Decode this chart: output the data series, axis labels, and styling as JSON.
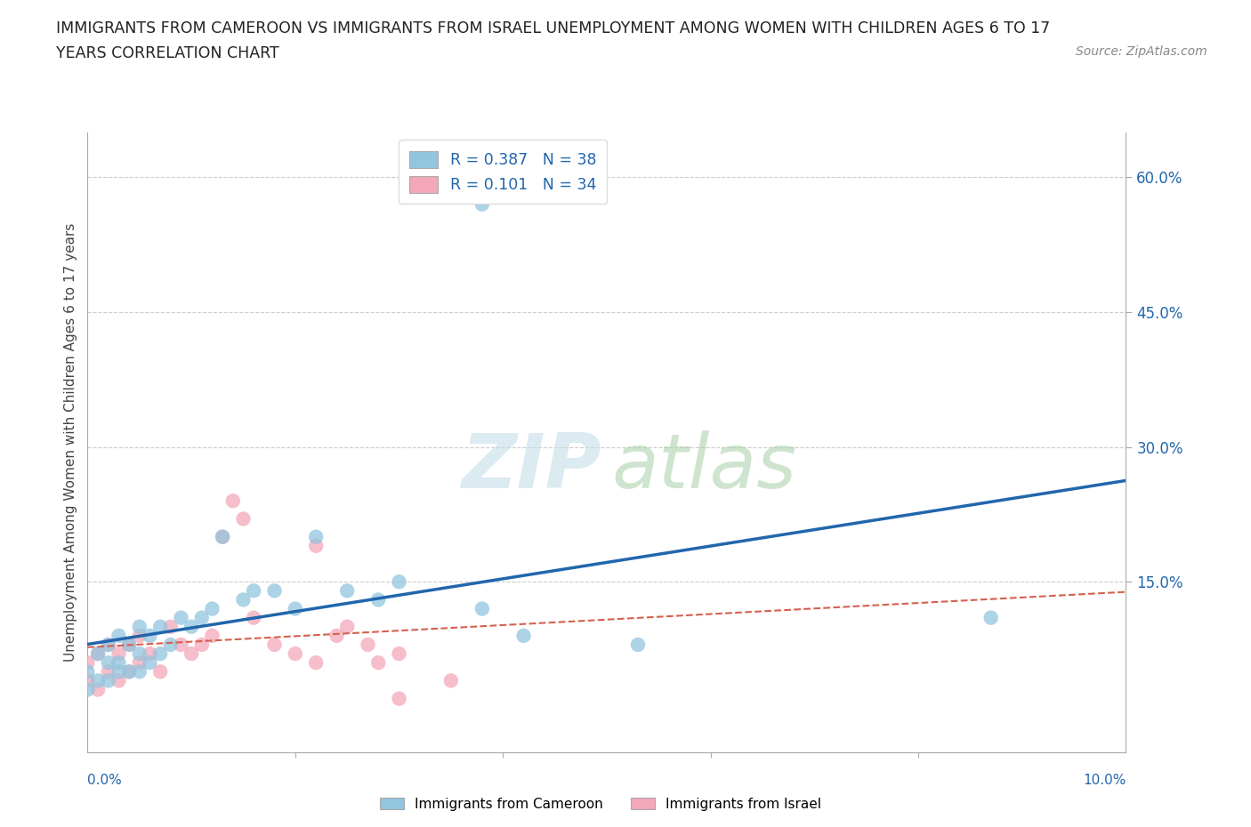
{
  "title_line1": "IMMIGRANTS FROM CAMEROON VS IMMIGRANTS FROM ISRAEL UNEMPLOYMENT AMONG WOMEN WITH CHILDREN AGES 6 TO 17",
  "title_line2": "YEARS CORRELATION CHART",
  "source": "Source: ZipAtlas.com",
  "ylabel": "Unemployment Among Women with Children Ages 6 to 17 years",
  "legend_cameroon": "Immigrants from Cameroon",
  "legend_israel": "Immigrants from Israel",
  "R_cameroon": 0.387,
  "N_cameroon": 38,
  "R_israel": 0.101,
  "N_israel": 34,
  "cameroon_color": "#92c5de",
  "israel_color": "#f4a7b9",
  "cameroon_line_color": "#2166ac",
  "israel_line_color": "#d6604d",
  "background_color": "#ffffff",
  "grid_color": "#cccccc",
  "xlim": [
    0.0,
    0.1
  ],
  "ylim": [
    -0.04,
    0.65
  ],
  "cameroon_x": [
    0.0,
    0.0,
    0.001,
    0.001,
    0.002,
    0.002,
    0.002,
    0.003,
    0.003,
    0.003,
    0.004,
    0.004,
    0.005,
    0.005,
    0.005,
    0.006,
    0.006,
    0.007,
    0.007,
    0.008,
    0.009,
    0.01,
    0.011,
    0.012,
    0.013,
    0.015,
    0.016,
    0.018,
    0.02,
    0.022,
    0.025,
    0.028,
    0.03,
    0.038,
    0.042,
    0.053,
    0.087,
    0.038
  ],
  "cameroon_y": [
    0.05,
    0.03,
    0.07,
    0.04,
    0.06,
    0.04,
    0.08,
    0.09,
    0.06,
    0.05,
    0.08,
    0.05,
    0.07,
    0.1,
    0.05,
    0.09,
    0.06,
    0.1,
    0.07,
    0.08,
    0.11,
    0.1,
    0.11,
    0.12,
    0.2,
    0.13,
    0.14,
    0.14,
    0.12,
    0.2,
    0.14,
    0.13,
    0.15,
    0.12,
    0.09,
    0.08,
    0.11,
    0.57
  ],
  "israel_x": [
    0.0,
    0.0,
    0.001,
    0.001,
    0.002,
    0.002,
    0.003,
    0.003,
    0.004,
    0.004,
    0.005,
    0.005,
    0.006,
    0.007,
    0.008,
    0.009,
    0.01,
    0.011,
    0.012,
    0.013,
    0.015,
    0.016,
    0.018,
    0.02,
    0.022,
    0.024,
    0.025,
    0.027,
    0.028,
    0.03,
    0.035,
    0.014,
    0.022,
    0.03
  ],
  "israel_y": [
    0.06,
    0.04,
    0.07,
    0.03,
    0.08,
    0.05,
    0.07,
    0.04,
    0.08,
    0.05,
    0.09,
    0.06,
    0.07,
    0.05,
    0.1,
    0.08,
    0.07,
    0.08,
    0.09,
    0.2,
    0.22,
    0.11,
    0.08,
    0.07,
    0.06,
    0.09,
    0.1,
    0.08,
    0.06,
    0.07,
    0.04,
    0.24,
    0.19,
    0.02
  ]
}
